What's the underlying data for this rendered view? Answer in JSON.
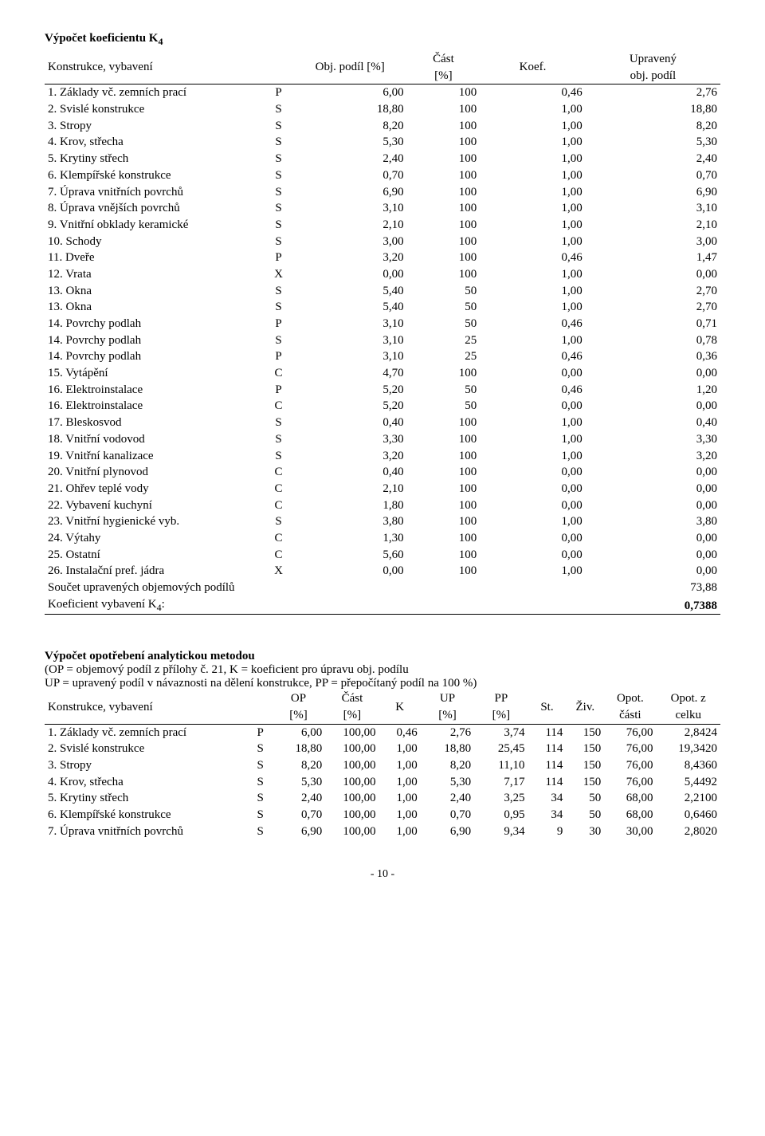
{
  "s1": {
    "title_prefix": "Výpočet koeficientu K",
    "title_sub": "4",
    "h": {
      "c1": "Konstrukce, vybavení",
      "c3": "Obj. podíl [%]",
      "c4a": "Část",
      "c4b": "[%]",
      "c5": "Koef.",
      "c6a": "Upravený",
      "c6b": "obj. podíl"
    },
    "rows": [
      {
        "n": "1. Základy vč. zemních prací",
        "t": "P",
        "a": "6,00",
        "b": "100",
        "c": "0,46",
        "d": "2,76"
      },
      {
        "n": "2. Svislé konstrukce",
        "t": "S",
        "a": "18,80",
        "b": "100",
        "c": "1,00",
        "d": "18,80"
      },
      {
        "n": "3. Stropy",
        "t": "S",
        "a": "8,20",
        "b": "100",
        "c": "1,00",
        "d": "8,20"
      },
      {
        "n": "4. Krov, střecha",
        "t": "S",
        "a": "5,30",
        "b": "100",
        "c": "1,00",
        "d": "5,30"
      },
      {
        "n": "5. Krytiny střech",
        "t": "S",
        "a": "2,40",
        "b": "100",
        "c": "1,00",
        "d": "2,40"
      },
      {
        "n": "6. Klempířské konstrukce",
        "t": "S",
        "a": "0,70",
        "b": "100",
        "c": "1,00",
        "d": "0,70"
      },
      {
        "n": "7. Úprava vnitřních povrchů",
        "t": "S",
        "a": "6,90",
        "b": "100",
        "c": "1,00",
        "d": "6,90"
      },
      {
        "n": "8. Úprava vnějších povrchů",
        "t": "S",
        "a": "3,10",
        "b": "100",
        "c": "1,00",
        "d": "3,10"
      },
      {
        "n": "9. Vnitřní obklady keramické",
        "t": "S",
        "a": "2,10",
        "b": "100",
        "c": "1,00",
        "d": "2,10"
      },
      {
        "n": "10. Schody",
        "t": "S",
        "a": "3,00",
        "b": "100",
        "c": "1,00",
        "d": "3,00"
      },
      {
        "n": "11. Dveře",
        "t": "P",
        "a": "3,20",
        "b": "100",
        "c": "0,46",
        "d": "1,47"
      },
      {
        "n": "12. Vrata",
        "t": "X",
        "a": "0,00",
        "b": "100",
        "c": "1,00",
        "d": "0,00"
      },
      {
        "n": "13. Okna",
        "t": "S",
        "a": "5,40",
        "b": "50",
        "c": "1,00",
        "d": "2,70"
      },
      {
        "n": "13. Okna",
        "t": "S",
        "a": "5,40",
        "b": "50",
        "c": "1,00",
        "d": "2,70"
      },
      {
        "n": "14. Povrchy podlah",
        "t": "P",
        "a": "3,10",
        "b": "50",
        "c": "0,46",
        "d": "0,71"
      },
      {
        "n": "14. Povrchy podlah",
        "t": "S",
        "a": "3,10",
        "b": "25",
        "c": "1,00",
        "d": "0,78"
      },
      {
        "n": "14. Povrchy podlah",
        "t": "P",
        "a": "3,10",
        "b": "25",
        "c": "0,46",
        "d": "0,36"
      },
      {
        "n": "15. Vytápění",
        "t": "C",
        "a": "4,70",
        "b": "100",
        "c": "0,00",
        "d": "0,00"
      },
      {
        "n": "16. Elektroinstalace",
        "t": "P",
        "a": "5,20",
        "b": "50",
        "c": "0,46",
        "d": "1,20"
      },
      {
        "n": "16. Elektroinstalace",
        "t": "C",
        "a": "5,20",
        "b": "50",
        "c": "0,00",
        "d": "0,00"
      },
      {
        "n": "17. Bleskosvod",
        "t": "S",
        "a": "0,40",
        "b": "100",
        "c": "1,00",
        "d": "0,40"
      },
      {
        "n": "18. Vnitřní vodovod",
        "t": "S",
        "a": "3,30",
        "b": "100",
        "c": "1,00",
        "d": "3,30"
      },
      {
        "n": "19. Vnitřní kanalizace",
        "t": "S",
        "a": "3,20",
        "b": "100",
        "c": "1,00",
        "d": "3,20"
      },
      {
        "n": "20. Vnitřní plynovod",
        "t": "C",
        "a": "0,40",
        "b": "100",
        "c": "0,00",
        "d": "0,00"
      },
      {
        "n": "21. Ohřev teplé vody",
        "t": "C",
        "a": "2,10",
        "b": "100",
        "c": "0,00",
        "d": "0,00"
      },
      {
        "n": "22. Vybavení kuchyní",
        "t": "C",
        "a": "1,80",
        "b": "100",
        "c": "0,00",
        "d": "0,00"
      },
      {
        "n": "23. Vnitřní hygienické vyb.",
        "t": "S",
        "a": "3,80",
        "b": "100",
        "c": "1,00",
        "d": "3,80"
      },
      {
        "n": "24. Výtahy",
        "t": "C",
        "a": "1,30",
        "b": "100",
        "c": "0,00",
        "d": "0,00"
      },
      {
        "n": "25. Ostatní",
        "t": "C",
        "a": "5,60",
        "b": "100",
        "c": "0,00",
        "d": "0,00"
      },
      {
        "n": "26. Instalační pref. jádra",
        "t": "X",
        "a": "0,00",
        "b": "100",
        "c": "1,00",
        "d": "0,00"
      }
    ],
    "sum_label": "Součet upravených objemových podílů",
    "sum_val": "73,88",
    "k4_label_pre": "Koeficient vybavení K",
    "k4_label_sub": "4",
    "k4_label_suf": ":",
    "k4_val": "0,7388"
  },
  "s2": {
    "heading": "Výpočet opotřebení analytickou metodou",
    "line1": "(OP = objemový podíl z přílohy č. 21, K = koeficient pro úpravu obj. podílu",
    "line2": "UP = upravený podíl v návaznosti na dělení konstrukce, PP = přepočítaný podíl na 100 %)",
    "h": {
      "c1": "Konstrukce, vybavení",
      "op1": "OP",
      "op2": "[%]",
      "cast1": "Část",
      "cast2": "[%]",
      "k": "K",
      "up1": "UP",
      "up2": "[%]",
      "pp1": "PP",
      "pp2": "[%]",
      "st": "St.",
      "ziv": "Živ.",
      "opot1": "Opot.",
      "opot2": "části",
      "opotz1": "Opot. z",
      "opotz2": "celku"
    },
    "rows": [
      {
        "n": "1. Základy vč. zemních prací",
        "t": "P",
        "a": "6,00",
        "b": "100,00",
        "c": "0,46",
        "d": "2,76",
        "e": "3,74",
        "f": "114",
        "g": "150",
        "h": "76,00",
        "i": "2,8424"
      },
      {
        "n": "2. Svislé konstrukce",
        "t": "S",
        "a": "18,80",
        "b": "100,00",
        "c": "1,00",
        "d": "18,80",
        "e": "25,45",
        "f": "114",
        "g": "150",
        "h": "76,00",
        "i": "19,3420"
      },
      {
        "n": "3. Stropy",
        "t": "S",
        "a": "8,20",
        "b": "100,00",
        "c": "1,00",
        "d": "8,20",
        "e": "11,10",
        "f": "114",
        "g": "150",
        "h": "76,00",
        "i": "8,4360"
      },
      {
        "n": "4. Krov, střecha",
        "t": "S",
        "a": "5,30",
        "b": "100,00",
        "c": "1,00",
        "d": "5,30",
        "e": "7,17",
        "f": "114",
        "g": "150",
        "h": "76,00",
        "i": "5,4492"
      },
      {
        "n": "5. Krytiny střech",
        "t": "S",
        "a": "2,40",
        "b": "100,00",
        "c": "1,00",
        "d": "2,40",
        "e": "3,25",
        "f": "34",
        "g": "50",
        "h": "68,00",
        "i": "2,2100"
      },
      {
        "n": "6. Klempířské konstrukce",
        "t": "S",
        "a": "0,70",
        "b": "100,00",
        "c": "1,00",
        "d": "0,70",
        "e": "0,95",
        "f": "34",
        "g": "50",
        "h": "68,00",
        "i": "0,6460"
      },
      {
        "n": "7. Úprava vnitřních povrchů",
        "t": "S",
        "a": "6,90",
        "b": "100,00",
        "c": "1,00",
        "d": "6,90",
        "e": "9,34",
        "f": "9",
        "g": "30",
        "h": "30,00",
        "i": "2,8020"
      }
    ]
  },
  "pagenum": "- 10 -"
}
